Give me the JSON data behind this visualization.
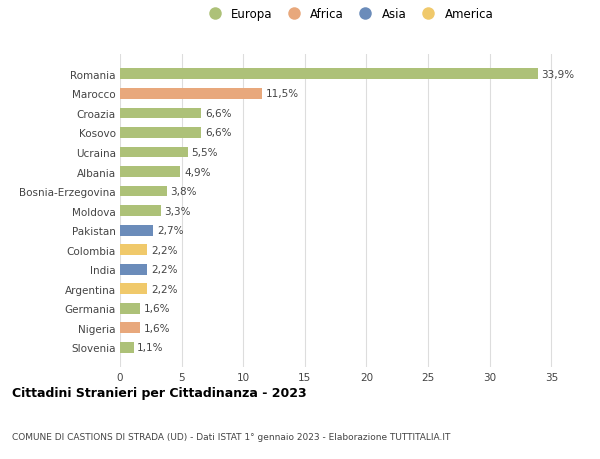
{
  "countries": [
    "Romania",
    "Marocco",
    "Croazia",
    "Kosovo",
    "Ucraina",
    "Albania",
    "Bosnia-Erzegovina",
    "Moldova",
    "Pakistan",
    "Colombia",
    "India",
    "Argentina",
    "Germania",
    "Nigeria",
    "Slovenia"
  ],
  "values": [
    33.9,
    11.5,
    6.6,
    6.6,
    5.5,
    4.9,
    3.8,
    3.3,
    2.7,
    2.2,
    2.2,
    2.2,
    1.6,
    1.6,
    1.1
  ],
  "labels": [
    "33,9%",
    "11,5%",
    "6,6%",
    "6,6%",
    "5,5%",
    "4,9%",
    "3,8%",
    "3,3%",
    "2,7%",
    "2,2%",
    "2,2%",
    "2,2%",
    "1,6%",
    "1,6%",
    "1,1%"
  ],
  "continents": [
    "Europa",
    "Africa",
    "Europa",
    "Europa",
    "Europa",
    "Europa",
    "Europa",
    "Europa",
    "Asia",
    "America",
    "Asia",
    "America",
    "Europa",
    "Africa",
    "Europa"
  ],
  "continent_colors": {
    "Europa": "#adc178",
    "Africa": "#e8a87c",
    "Asia": "#6b8cba",
    "America": "#f0c96b"
  },
  "legend_order": [
    "Europa",
    "Africa",
    "Asia",
    "America"
  ],
  "legend_colors": [
    "#adc178",
    "#e8a87c",
    "#6b8cba",
    "#f0c96b"
  ],
  "title": "Cittadini Stranieri per Cittadinanza - 2023",
  "subtitle": "COMUNE DI CASTIONS DI STRADA (UD) - Dati ISTAT 1° gennaio 2023 - Elaborazione TUTTITALIA.IT",
  "xlim": [
    0,
    37
  ],
  "xticks": [
    0,
    5,
    10,
    15,
    20,
    25,
    30,
    35
  ],
  "background_color": "#ffffff",
  "grid_color": "#dddddd",
  "bar_height": 0.55,
  "label_fontsize": 7.5,
  "tick_fontsize": 7.5
}
